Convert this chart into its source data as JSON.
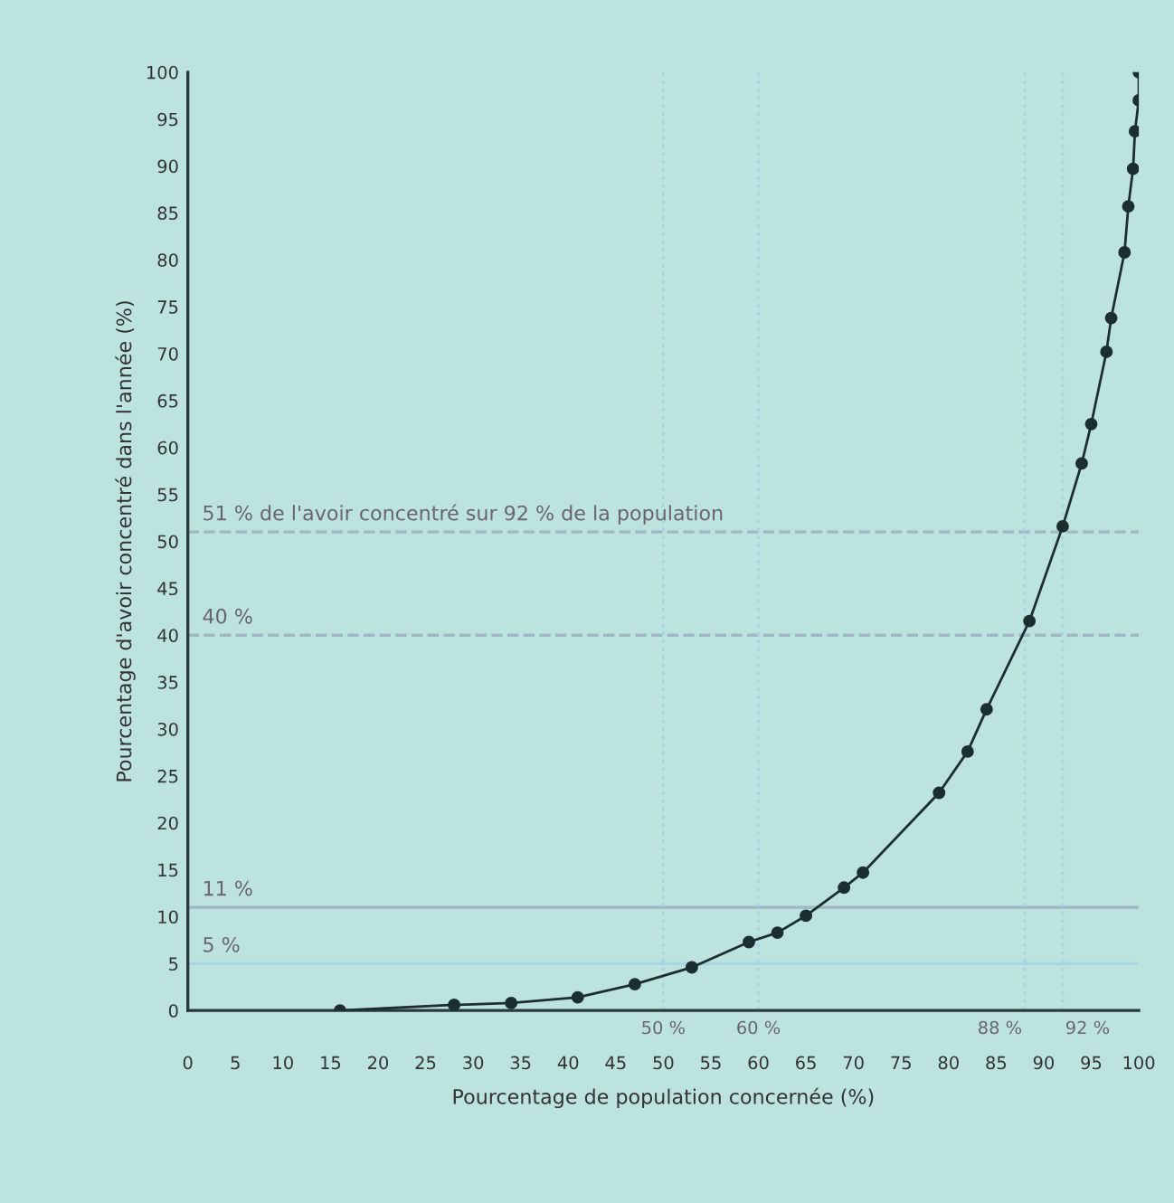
{
  "chart_data": {
    "type": "line",
    "xlabel": "Pourcentage de population concernée (%)",
    "ylabel": "Pourcentage d'avoir concentré dans l'année (%)",
    "xlim": [
      0,
      100
    ],
    "ylim": [
      0,
      100
    ],
    "xticks": [
      0,
      5,
      10,
      15,
      20,
      25,
      30,
      35,
      40,
      45,
      50,
      55,
      60,
      65,
      70,
      75,
      80,
      85,
      90,
      95,
      100
    ],
    "yticks": [
      0,
      5,
      10,
      15,
      20,
      25,
      30,
      35,
      40,
      45,
      50,
      55,
      60,
      65,
      70,
      75,
      80,
      85,
      90,
      95,
      100
    ],
    "grid": false,
    "marker": "circle",
    "line_style": "solid",
    "series": [
      {
        "color": "#1c2f30",
        "x": [
          16,
          28,
          34,
          41,
          47,
          53,
          59,
          62,
          65,
          69,
          71,
          79,
          82,
          84,
          88.5,
          92,
          94,
          95,
          96.6,
          97.1,
          98.5,
          98.9,
          99.4,
          99.6,
          100,
          100
        ],
        "values": [
          0,
          0.6,
          0.8,
          1.4,
          2.8,
          4.6,
          7.3,
          8.3,
          10.1,
          13.1,
          14.7,
          23.2,
          27.6,
          32.1,
          41.5,
          51.6,
          58.3,
          62.5,
          70.2,
          73.8,
          80.8,
          85.7,
          89.7,
          93.7,
          97,
          100
        ]
      }
    ],
    "ref_lines": [
      {
        "axis": "y",
        "value": 51,
        "label": "51 % de l'avoir concentré sur 92 % de la population",
        "color": "#9fb8c4",
        "line_style": "dashed"
      },
      {
        "axis": "y",
        "value": 40,
        "label": "40 %",
        "color": "#9fb8c4",
        "line_style": "dashed"
      },
      {
        "axis": "y",
        "value": 11,
        "label": "11 %",
        "color": "#9fb8c4",
        "line_style": "solid"
      },
      {
        "axis": "y",
        "value": 5,
        "label": "5 %",
        "color": "#a8d4e4",
        "line_style": "solid"
      },
      {
        "axis": "x",
        "value": 50,
        "label": "50 %",
        "color": "#a8d4e4",
        "line_style": "dotted"
      },
      {
        "axis": "x",
        "value": 60,
        "label": "60 %",
        "color": "#a8d4e4",
        "line_style": "dotted"
      },
      {
        "axis": "x",
        "value": 88,
        "label": "88 %",
        "color": "#a8d4e4",
        "line_style": "dotted"
      },
      {
        "axis": "x",
        "value": 92,
        "label": "92 %",
        "color": "#a8d4e4",
        "line_style": "dotted"
      }
    ]
  }
}
